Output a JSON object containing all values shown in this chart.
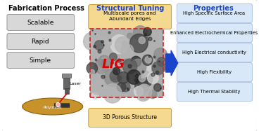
{
  "title_left": "Fabrication Process",
  "title_center": "Structural Tuning",
  "title_right": "Properties",
  "fab_items": [
    "Scalable",
    "Rapid",
    "Simple"
  ],
  "struct_top": "Multiscale pores and\nAbundant Edges",
  "struct_bottom": "3D Porous Structure",
  "lig_label": "LIG",
  "laser_label": "Laser",
  "polyimide_label": "Polyimide",
  "properties": [
    "High Specific Surface Area",
    "Enhanced Electrochemical Properties",
    "High Electrical conductivity",
    "High Flexibility",
    "High Thermal Stability"
  ],
  "bg_color": "#ffffff",
  "border_color": "#bbbbbb",
  "title_color_left": "#000000",
  "title_color_center": "#1a44cc",
  "title_color_right": "#1a44cc",
  "fab_box_face": "#d8d8d8",
  "fab_box_edge": "#999999",
  "struct_box_face": "#f5d990",
  "struct_box_edge": "#c8a030",
  "prop_box_face": "#d8e8f8",
  "prop_box_edge": "#aabbdd",
  "arrow_color": "#1a44cc",
  "lig_color": "#dd0000",
  "laser_beam_color": "#dd0000",
  "sem_bg": "#888888",
  "sem_dashed_color": "#cc2222",
  "disk_face": "#c8922a",
  "disk_edge": "#8b6010"
}
